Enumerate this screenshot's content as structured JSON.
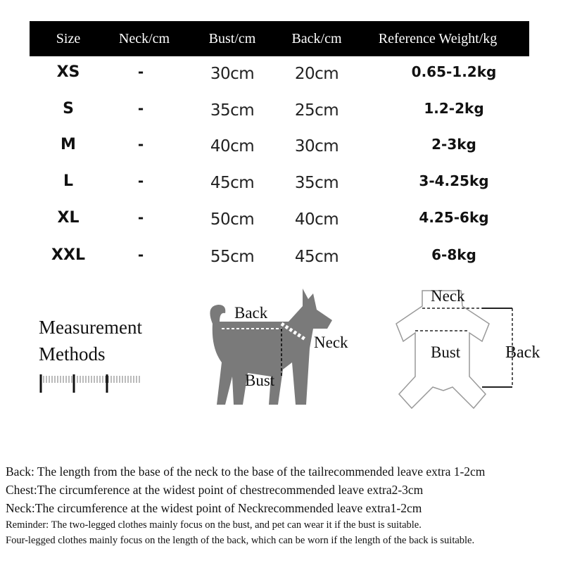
{
  "table": {
    "headers": [
      "Size",
      "Neck/cm",
      "Bust/cm",
      "Back/cm",
      "Reference Weight/kg"
    ],
    "rows": [
      {
        "size": "XS",
        "neck": "-",
        "bust": "30cm",
        "back": "20cm",
        "weight": "0.65-1.2kg"
      },
      {
        "size": "S",
        "neck": "-",
        "bust": "35cm",
        "back": "25cm",
        "weight": "1.2-2kg"
      },
      {
        "size": "M",
        "neck": "-",
        "bust": "40cm",
        "back": "30cm",
        "weight": "2-3kg"
      },
      {
        "size": "L",
        "neck": "-",
        "bust": "45cm",
        "back": "35cm",
        "weight": "3-4.25kg"
      },
      {
        "size": "XL",
        "neck": "-",
        "bust": "50cm",
        "back": "40cm",
        "weight": "4.25-6kg"
      },
      {
        "size": "XXL",
        "neck": "-",
        "bust": "55cm",
        "back": "45cm",
        "weight": "6-8kg"
      }
    ]
  },
  "methods": {
    "title_line1": "Measurement",
    "title_line2": "Methods",
    "dog_labels": {
      "back": "Back",
      "neck": "Neck",
      "bust": "Bust"
    },
    "garment_labels": {
      "neck": "Neck",
      "bust": "Bust",
      "back": "Back"
    }
  },
  "notes": [
    "Back: The length from the base of the neck to the base of the tailrecommended leave extra 1-2cm",
    "Chest:The circumference at the widest point of chestrecommended leave extra2-3cm",
    "Neck:The circumference at the widest point of Neckrecommended leave extra1-2cm",
    "Reminder: The two-legged clothes mainly focus on the bust, and pet can wear it if the bust is suitable.",
    "Four-legged clothes mainly focus on the length of the back, which can be worn if the length of the back is  suitable."
  ],
  "colors": {
    "header_bg": "#000000",
    "silhouette": "#7a7a7a"
  }
}
